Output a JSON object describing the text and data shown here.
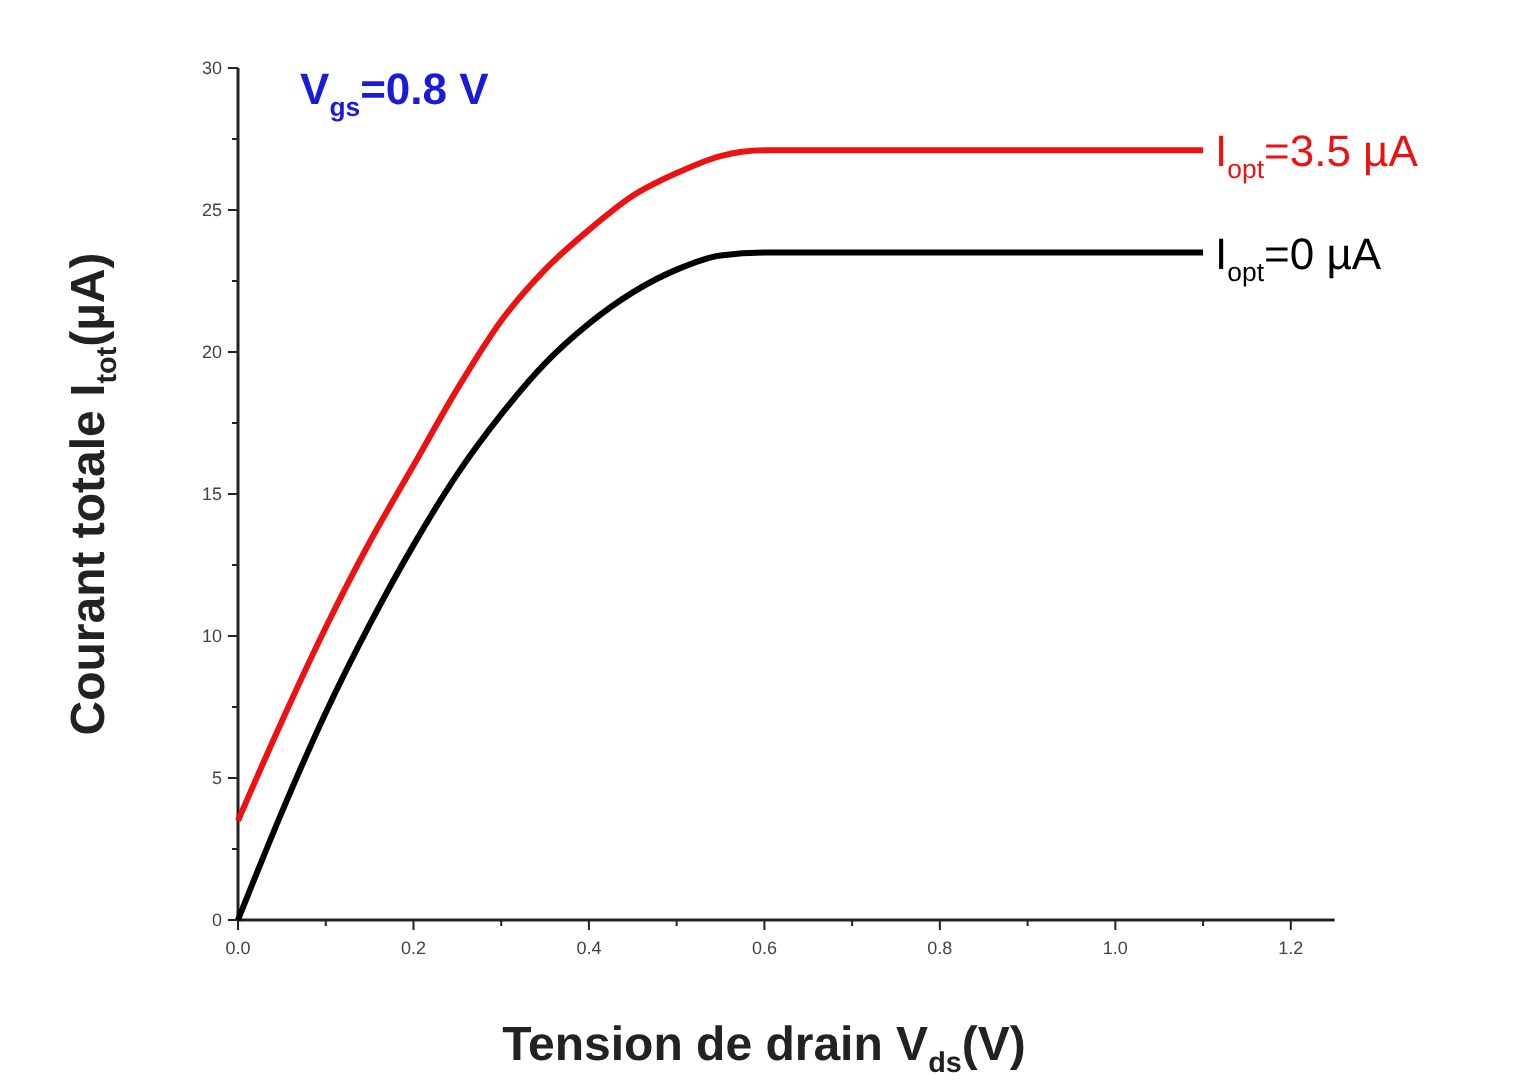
{
  "chart_data": {
    "type": "line",
    "xlabel": "Tension de drain V$_{ds}$(V)",
    "ylabel": "Courant totale I$_{tot}$(µA)",
    "annotations": [
      "V$_{gs}$=0.8 V"
    ],
    "xlim": [
      0,
      1.25
    ],
    "ylim": [
      0,
      30
    ],
    "xticks": [
      {
        "value": 0,
        "label": "0.0"
      },
      {
        "value": 0.1,
        "label": null
      },
      {
        "value": 0.2,
        "label": "0.2"
      },
      {
        "value": 0.3,
        "label": null
      },
      {
        "value": 0.4,
        "label": "0.4"
      },
      {
        "value": 0.5,
        "label": null
      },
      {
        "value": 0.6,
        "label": "0.6"
      },
      {
        "value": 0.7,
        "label": null
      },
      {
        "value": 0.8,
        "label": "0.8"
      },
      {
        "value": 0.9,
        "label": null
      },
      {
        "value": 1,
        "label": "1.0"
      },
      {
        "value": 1.1,
        "label": null
      },
      {
        "value": 1.2,
        "label": "1.2"
      }
    ],
    "yticks": [
      0,
      {
        "value": 2.5,
        "label": null
      },
      5,
      {
        "value": 7.5,
        "label": null
      },
      10,
      {
        "value": 12.5,
        "label": null
      },
      15,
      {
        "value": 17.5,
        "label": null
      },
      20,
      {
        "value": 22.5,
        "label": null
      },
      25,
      {
        "value": 27.5,
        "label": null
      },
      30
    ],
    "grid": false,
    "x": [
      0,
      0.05,
      0.1,
      0.15,
      0.2,
      0.25,
      0.3,
      0.35,
      0.4,
      0.45,
      0.5,
      0.55,
      0.6,
      1.1
    ],
    "series": [
      {
        "name": "I$_{opt}$=3.5 µA",
        "color": "#ee1111",
        "values": [
          3.5,
          7.0,
          10.3,
          13.3,
          16.0,
          18.7,
          21.1,
          22.9,
          24.3,
          25.5,
          26.3,
          26.9,
          27.1,
          27.1
        ]
      },
      {
        "name": "I$_{opt}$=0 µA",
        "color": "#000000",
        "values": [
          0,
          3.8,
          7.3,
          10.4,
          13.2,
          15.7,
          17.8,
          19.6,
          21.0,
          22.1,
          22.9,
          23.4,
          23.5,
          23.5
        ]
      }
    ]
  }
}
